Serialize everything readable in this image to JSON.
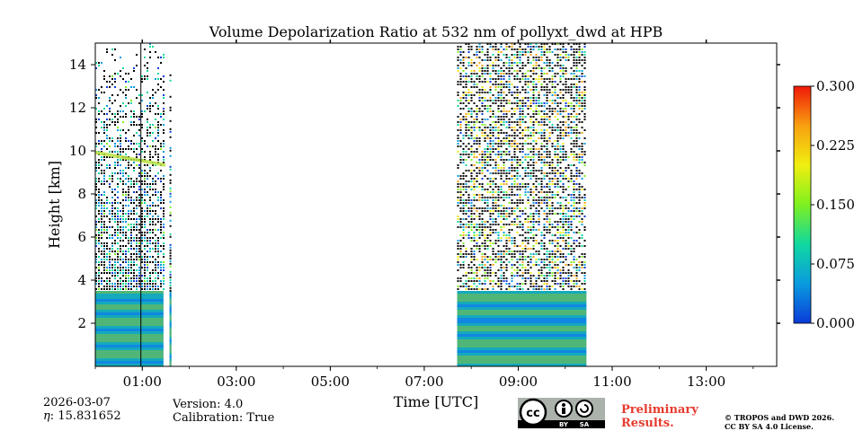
{
  "chart_data": {
    "type": "heatmap",
    "title": "Volume Depolarization Ratio at 532 nm of pollyxt_dwd at HPB",
    "xlabel": "Time [UTC]",
    "ylabel": "Height [km]",
    "xlim_hours": [
      0.0,
      14.5
    ],
    "ylim_km": [
      0.0,
      15.0
    ],
    "xticks": [
      {
        "hour": 1,
        "label": "01:00"
      },
      {
        "hour": 3,
        "label": "03:00"
      },
      {
        "hour": 5,
        "label": "05:00"
      },
      {
        "hour": 7,
        "label": "07:00"
      },
      {
        "hour": 9,
        "label": "09:00"
      },
      {
        "hour": 11,
        "label": "11:00"
      },
      {
        "hour": 13,
        "label": "13:00"
      }
    ],
    "yticks": [
      {
        "value": 2,
        "label": "2"
      },
      {
        "value": 4,
        "label": "4"
      },
      {
        "value": 6,
        "label": "6"
      },
      {
        "value": 8,
        "label": "8"
      },
      {
        "value": 10,
        "label": "10"
      },
      {
        "value": 12,
        "label": "12"
      },
      {
        "value": 14,
        "label": "14"
      }
    ],
    "colorbar": {
      "min": 0.0,
      "max": 0.3,
      "ticks": [
        {
          "value": 0.0,
          "label": "0.000"
        },
        {
          "value": 0.075,
          "label": "0.075"
        },
        {
          "value": 0.15,
          "label": "0.150"
        },
        {
          "value": 0.225,
          "label": "0.225"
        },
        {
          "value": 0.3,
          "label": "0.300"
        }
      ],
      "colors": [
        "#0a3bd8",
        "#0a9be0",
        "#10d8a0",
        "#7ef020",
        "#f0ef10",
        "#f8a010",
        "#f01808"
      ]
    },
    "data_segments": [
      {
        "start_hour": 0.0,
        "end_hour": 1.45,
        "description": "valid measurements",
        "max_height_km": 15.0
      },
      {
        "start_hour": 1.58,
        "end_hour": 1.62,
        "description": "narrow profile column",
        "max_height_km": 13.8
      },
      {
        "start_hour": 7.7,
        "end_hour": 10.45,
        "description": "valid measurements",
        "max_height_km": 15.0
      }
    ],
    "marker_line_hour": 0.97,
    "aerosol_layer_top_km": 3.5,
    "cloud_layer_km": [
      9.3,
      10.0
    ]
  },
  "footer": {
    "date": "2026-03-07",
    "eta": "15.831652",
    "eta_symbol": "η",
    "version": "Version: 4.0",
    "calibration": "Calibration: True",
    "preliminary_line1": "Preliminary",
    "preliminary_line2": "Results.",
    "copyright_line1": "© TROPOS and DWD 2026.",
    "copyright_line2": "CC BY SA 4.0 License.",
    "license_logo_text": "cc",
    "license_by": "BY",
    "license_sa": "SA"
  }
}
